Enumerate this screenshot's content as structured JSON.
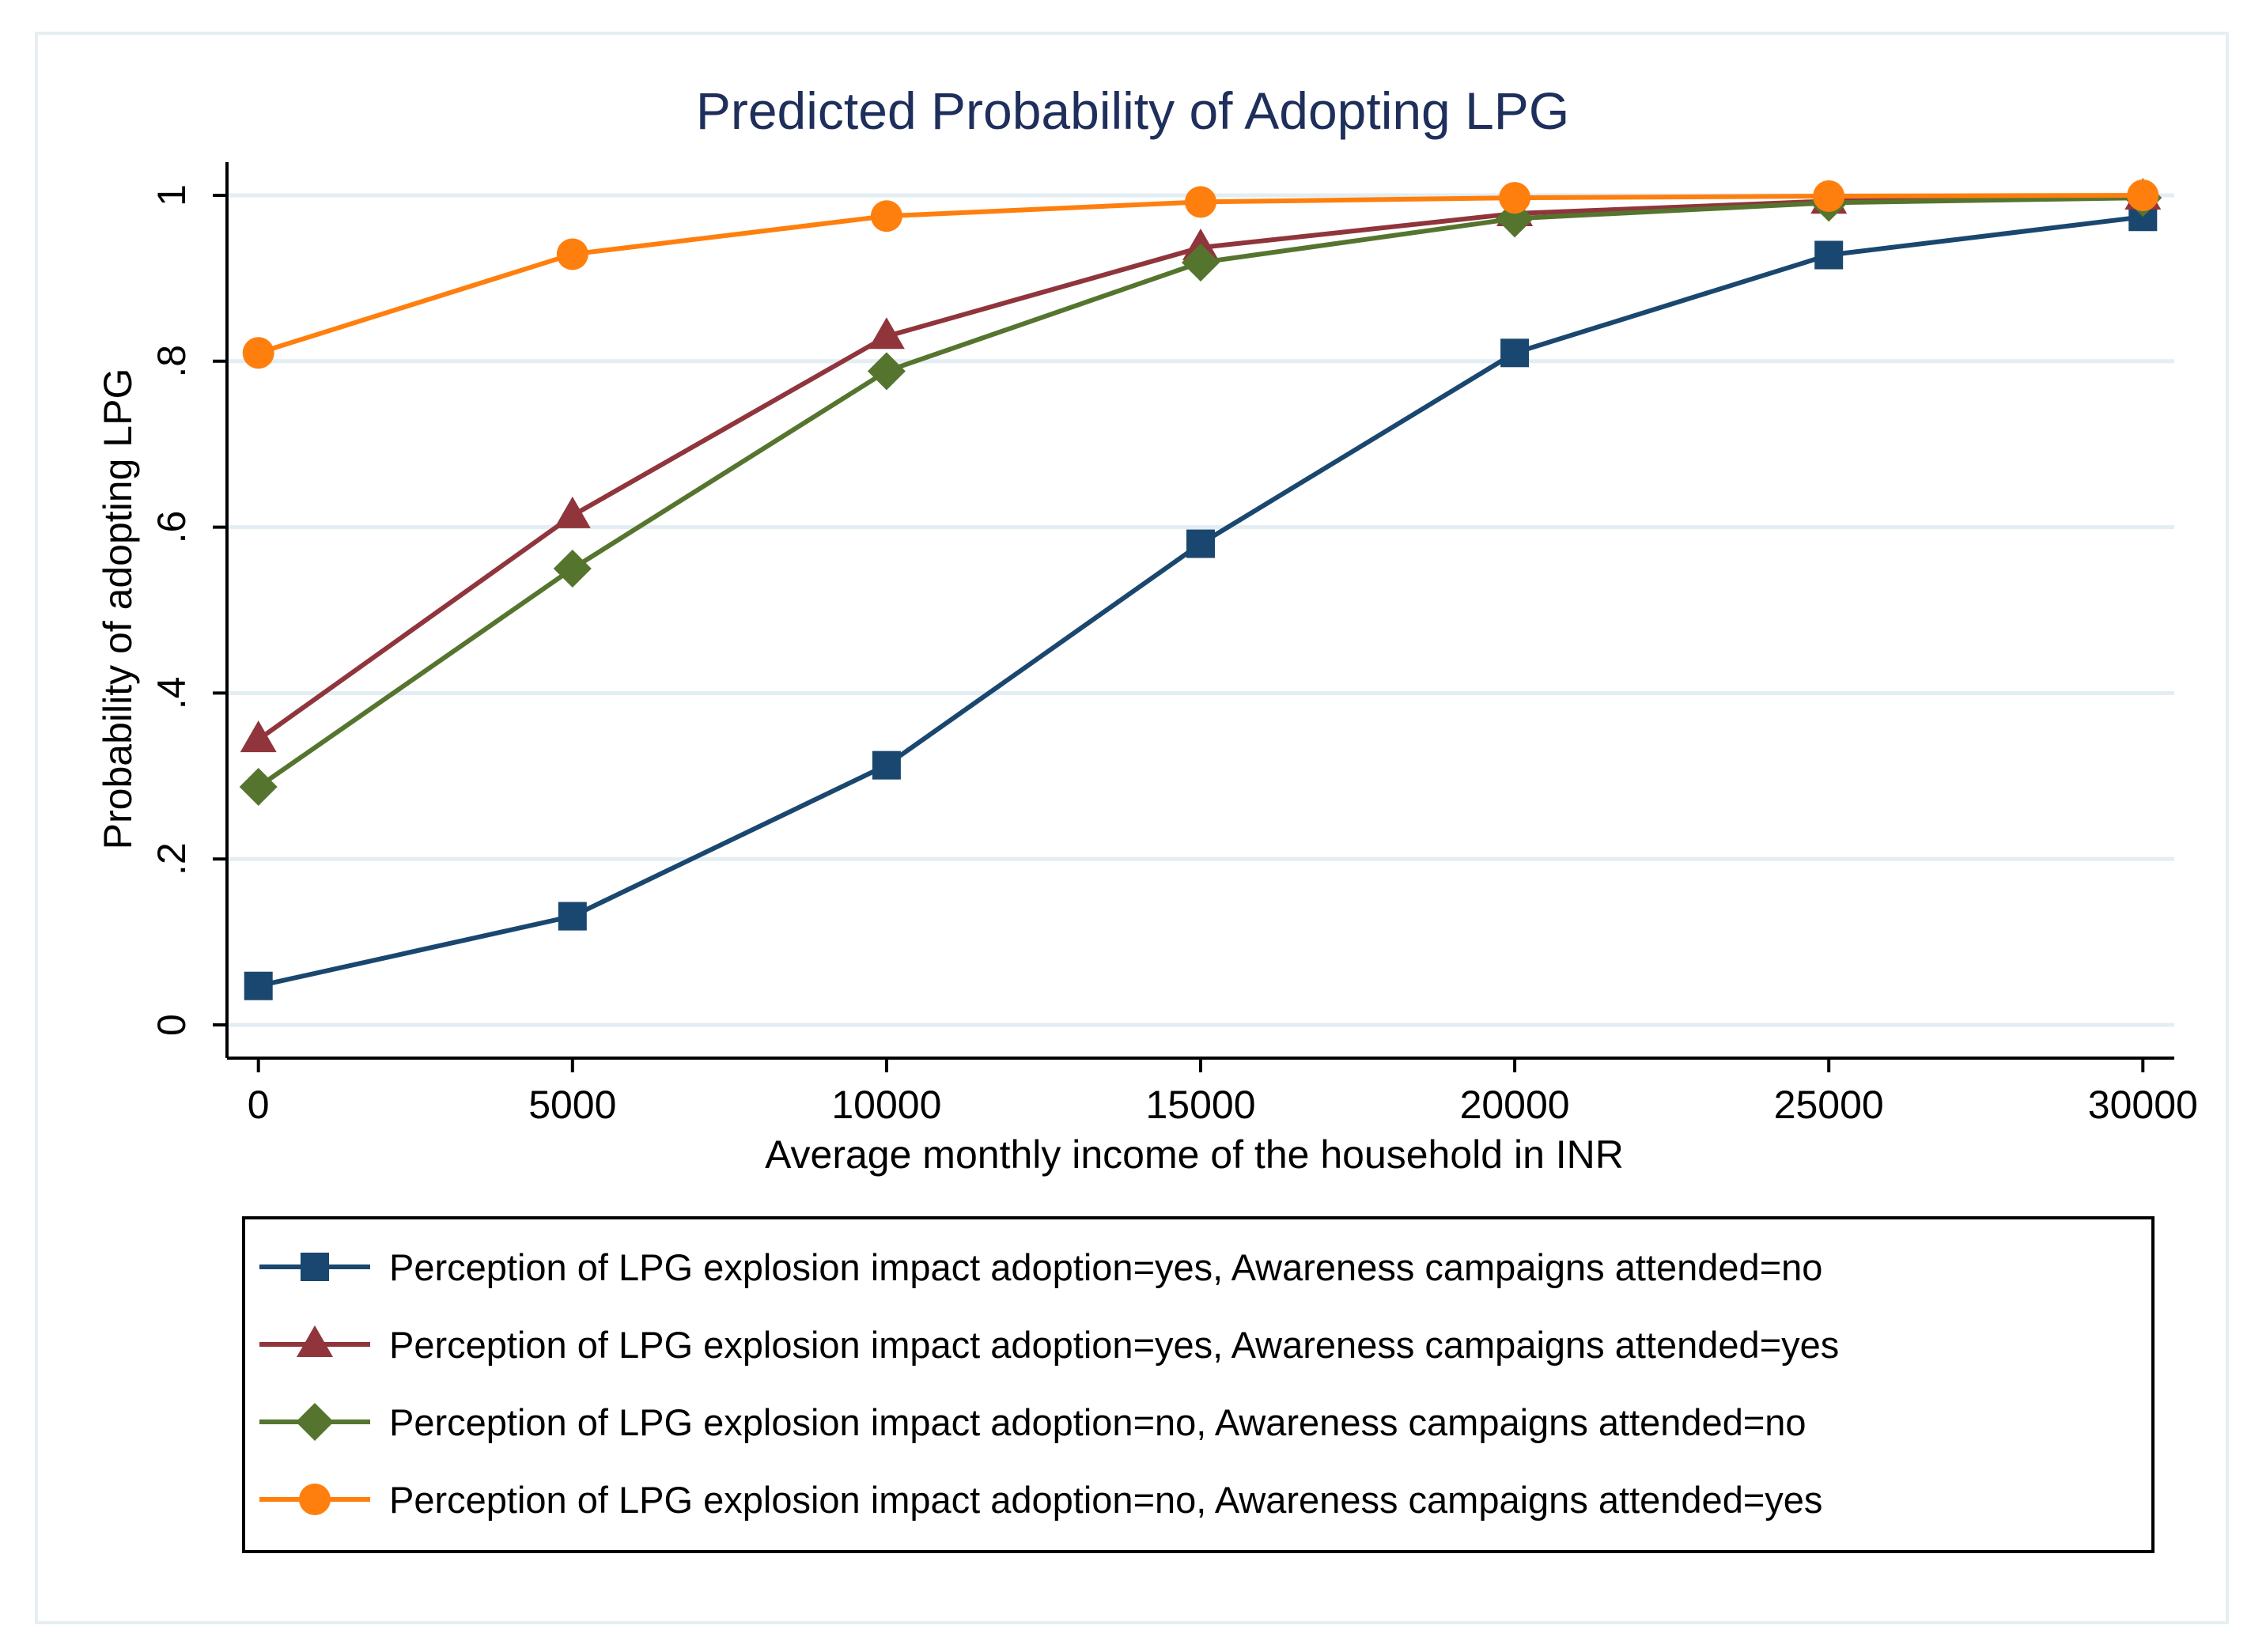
{
  "chart_data": {
    "type": "line",
    "title": "Predicted Probability of Adopting LPG",
    "xlabel": "Average monthly income of the household in INR",
    "ylabel": "Probability of adopting LPG",
    "x": [
      0,
      5000,
      10000,
      15000,
      20000,
      25000,
      30000
    ],
    "x_tick_labels": [
      "0",
      "5000",
      "10000",
      "15000",
      "20000",
      "25000",
      "30000"
    ],
    "y_ticks": [
      0,
      0.2,
      0.4,
      0.6,
      0.8,
      1
    ],
    "y_tick_labels": [
      "0",
      ".2",
      ".4",
      ".6",
      ".8",
      "1"
    ],
    "xlim": [
      -500,
      30500
    ],
    "ylim": [
      -0.04,
      1.04
    ],
    "grid": true,
    "legend_position": "bottom",
    "series": [
      {
        "name": "Perception of LPG explosion impact adoption=yes, Awareness campaigns attended=no",
        "color": "#1a476f",
        "marker": "square",
        "values": [
          0.047,
          0.131,
          0.313,
          0.58,
          0.81,
          0.928,
          0.974
        ]
      },
      {
        "name": "Perception of LPG explosion impact adoption=yes, Awareness campaigns attended=yes",
        "color": "#90353b",
        "marker": "triangle",
        "values": [
          0.344,
          0.614,
          0.83,
          0.937,
          0.978,
          0.993,
          0.998
        ]
      },
      {
        "name": "Perception of LPG explosion impact adoption=no, Awareness campaigns attended=no",
        "color": "#55752f",
        "marker": "diamond",
        "values": [
          0.287,
          0.55,
          0.788,
          0.919,
          0.972,
          0.991,
          0.997
        ]
      },
      {
        "name": "Perception of LPG explosion impact adoption=no, Awareness campaigns attended=yes",
        "color": "#ff7f0e",
        "marker": "circle",
        "values": [
          0.81,
          0.929,
          0.975,
          0.992,
          0.997,
          0.999,
          1.0
        ]
      }
    ]
  }
}
